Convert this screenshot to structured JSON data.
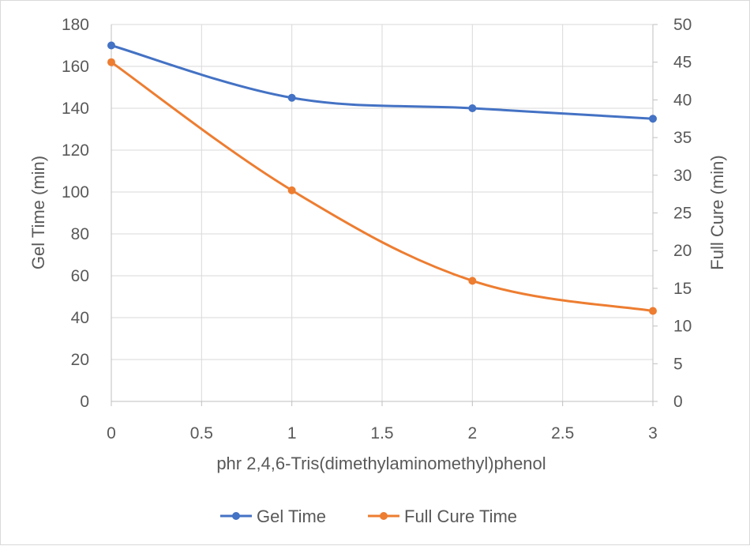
{
  "chart_data": {
    "type": "line",
    "x": [
      0,
      1,
      2,
      3
    ],
    "xlabel": "phr 2,4,6-Tris(dimethylaminomethyl)phenol",
    "xlim": [
      0,
      3
    ],
    "x_ticks": [
      "0",
      "0.5",
      "1",
      "1.5",
      "2",
      "2.5",
      "3"
    ],
    "x_tick_values": [
      0,
      0.5,
      1,
      1.5,
      2,
      2.5,
      3
    ],
    "ylabel": "Gel Time (min)",
    "ylim": [
      0,
      180
    ],
    "y_ticks": [
      "0",
      "20",
      "40",
      "60",
      "80",
      "100",
      "120",
      "140",
      "160",
      "180"
    ],
    "y_tick_values": [
      0,
      20,
      40,
      60,
      80,
      100,
      120,
      140,
      160,
      180
    ],
    "y2label": "Full Cure (min)",
    "y2lim": [
      0,
      50
    ],
    "y2_ticks": [
      "0",
      "5",
      "10",
      "15",
      "20",
      "25",
      "30",
      "35",
      "40",
      "45",
      "50"
    ],
    "y2_tick_values": [
      0,
      5,
      10,
      15,
      20,
      25,
      30,
      35,
      40,
      45,
      50
    ],
    "grid": true,
    "legend_position": "bottom",
    "series": [
      {
        "name": "Gel Time",
        "axis": "left",
        "color": "#4472c4",
        "values": [
          170,
          145,
          140,
          135
        ]
      },
      {
        "name": "Full Cure Time",
        "axis": "right",
        "color": "#ed7d31",
        "values": [
          45,
          28,
          16,
          12
        ]
      }
    ]
  }
}
